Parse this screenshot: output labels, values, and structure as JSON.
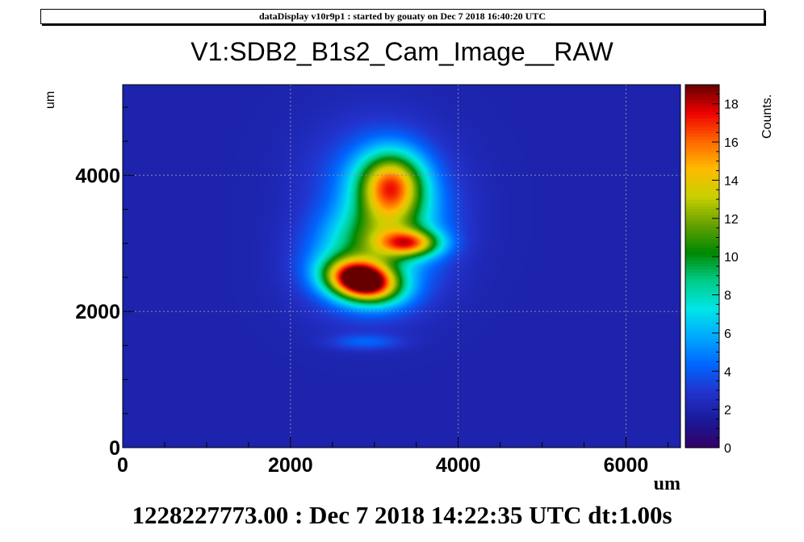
{
  "header": {
    "text": "dataDisplay v10r9p1 : started by gouaty on Dec  7 2018 16:40:20 UTC"
  },
  "footer": {
    "text": "1228227773.00 : Dec  7 2018 14:22:35 UTC dt:1.00s"
  },
  "chart_data": {
    "type": "heatmap",
    "title": "V1:SDB2_B1s2_Cam_Image__RAW",
    "xlabel": "um",
    "ylabel": "um",
    "xlim": [
      0,
      6650
    ],
    "ylim": [
      0,
      5330
    ],
    "x_ticks": [
      {
        "value": 0,
        "label": "0"
      },
      {
        "value": 2000,
        "label": "2000"
      },
      {
        "value": 4000,
        "label": "4000"
      },
      {
        "value": 6000,
        "label": "6000"
      }
    ],
    "y_ticks": [
      {
        "value": 0,
        "label": "0"
      },
      {
        "value": 2000,
        "label": "2000"
      },
      {
        "value": 4000,
        "label": "4000"
      }
    ],
    "grid": true,
    "background_level": 2,
    "colorbar": {
      "title": "Counts.",
      "range": [
        0,
        19
      ],
      "ticks": [
        0,
        2,
        4,
        6,
        8,
        10,
        12,
        14,
        16,
        18
      ],
      "colors": [
        "#330066",
        "#1a1a99",
        "#2233cc",
        "#0066ff",
        "#00aaff",
        "#00e6e6",
        "#00cc88",
        "#008800",
        "#66a000",
        "#c8d000",
        "#ffbb00",
        "#ff6600",
        "#ee0000",
        "#660000"
      ]
    },
    "blobs": [
      {
        "cx": 2850,
        "cy": 2450,
        "sx": 300,
        "sy": 200,
        "rot": -15,
        "peak": 17.5
      },
      {
        "cx": 3200,
        "cy": 3850,
        "sx": 280,
        "sy": 340,
        "rot": 0,
        "peak": 11.5
      },
      {
        "cx": 3430,
        "cy": 3000,
        "sx": 260,
        "sy": 140,
        "rot": 0,
        "peak": 9.5
      },
      {
        "cx": 3020,
        "cy": 3150,
        "sx": 460,
        "sy": 320,
        "rot": 20,
        "peak": 4.5
      },
      {
        "cx": 3100,
        "cy": 3700,
        "sx": 560,
        "sy": 700,
        "rot": 10,
        "peak": 3.2
      },
      {
        "cx": 2950,
        "cy": 2600,
        "sx": 520,
        "sy": 480,
        "rot": 25,
        "peak": 3.5
      },
      {
        "cx": 2900,
        "cy": 1550,
        "sx": 300,
        "sy": 80,
        "rot": 0,
        "peak": 2.0
      }
    ]
  }
}
